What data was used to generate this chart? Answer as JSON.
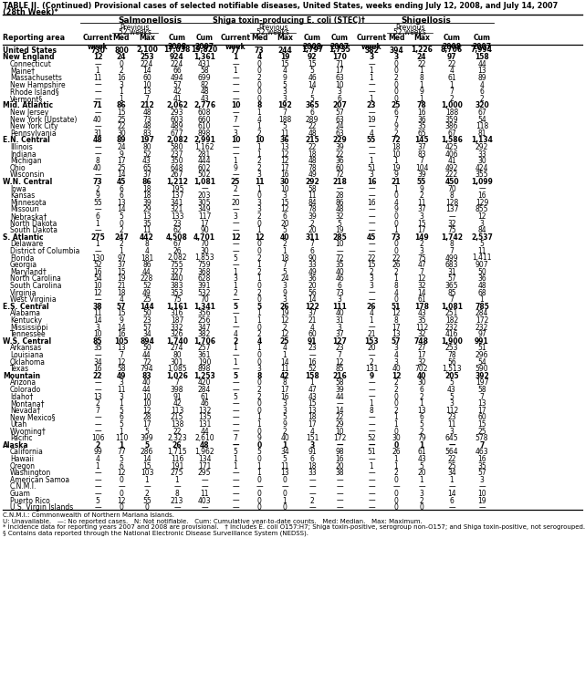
{
  "title_line1": "TABLE II. (Continued) Provisional cases of selected notifiable diseases, United States, weeks ending July 12, 2008, and July 14, 2007",
  "title_line2": "(28th Week)*",
  "footnote_lines": [
    "C.N.M.I.: Commonwealth of Northern Mariana Islands.",
    "U: Unavailable.   —: No reported cases.   N: Not notifiable.   Cum: Cumulative year-to-date counts.   Med: Median.   Max: Maximum.",
    "* Incidence data for reporting years 2007 and 2008 are provisional.   † Includes E. coli O157:H7; Shiga toxin-positive, serogroup non-O157; and Shiga toxin-positive, not serogrouped.",
    "§ Contains data reported through the National Electronic Disease Surveillance System (NEDSS)."
  ],
  "rows": [
    [
      "United States",
      "730",
      "800",
      "2,100",
      "17,038",
      "19,820",
      "77",
      "73",
      "244",
      "1,797",
      "1,735",
      "382",
      "394",
      "1,226",
      "8,706",
      "7,994"
    ],
    [
      "New England",
      "12",
      "24",
      "253",
      "924",
      "1,361",
      "1",
      "4",
      "19",
      "92",
      "170",
      "3",
      "3",
      "24",
      "97",
      "158"
    ],
    [
      "Connecticut",
      "—",
      "0",
      "224",
      "224",
      "431",
      "—",
      "0",
      "15",
      "15",
      "71",
      "—",
      "0",
      "22",
      "22",
      "44"
    ],
    [
      "Maine†",
      "1",
      "2",
      "14",
      "66",
      "58",
      "1",
      "0",
      "4",
      "5",
      "17",
      "1",
      "0",
      "1",
      "4",
      "13"
    ],
    [
      "Massachusetts",
      "11",
      "16",
      "60",
      "494",
      "699",
      "—",
      "2",
      "9",
      "46",
      "63",
      "1",
      "2",
      "8",
      "61",
      "89"
    ],
    [
      "New Hampshire",
      "—",
      "3",
      "10",
      "57",
      "82",
      "—",
      "0",
      "5",
      "14",
      "10",
      "—",
      "0",
      "1",
      "1",
      "4"
    ],
    [
      "Rhode Island§",
      "—",
      "1",
      "13",
      "42",
      "48",
      "—",
      "0",
      "3",
      "7",
      "3",
      "—",
      "0",
      "9",
      "7",
      "6"
    ],
    [
      "Vermont§",
      "—",
      "1",
      "7",
      "41",
      "43",
      "—",
      "0",
      "3",
      "5",
      "6",
      "1",
      "0",
      "1",
      "2",
      "2"
    ],
    [
      "Mid. Atlantic",
      "71",
      "86",
      "212",
      "2,062",
      "2,776",
      "10",
      "8",
      "192",
      "365",
      "207",
      "23",
      "25",
      "78",
      "1,000",
      "320"
    ],
    [
      "New Jersey",
      "—",
      "15",
      "48",
      "293",
      "608",
      "—",
      "1",
      "7",
      "6",
      "57",
      "—",
      "6",
      "16",
      "188",
      "67"
    ],
    [
      "New York (Upstate)",
      "40",
      "25",
      "73",
      "603",
      "660",
      "7",
      "4",
      "188",
      "289",
      "63",
      "19",
      "7",
      "36",
      "359",
      "54"
    ],
    [
      "New York City",
      "—",
      "22",
      "48",
      "489",
      "610",
      "—",
      "1",
      "5",
      "22",
      "24",
      "—",
      "9",
      "35",
      "386",
      "118"
    ],
    [
      "Pennsylvania",
      "31",
      "30",
      "83",
      "677",
      "898",
      "3",
      "2",
      "11",
      "48",
      "63",
      "4",
      "2",
      "65",
      "67",
      "81"
    ],
    [
      "E.N. Central",
      "48",
      "89",
      "197",
      "2,082",
      "2,991",
      "10",
      "10",
      "36",
      "215",
      "229",
      "55",
      "72",
      "145",
      "1,586",
      "1,134"
    ],
    [
      "Illinois",
      "—",
      "24",
      "80",
      "580",
      "1,162",
      "—",
      "1",
      "13",
      "22",
      "39",
      "—",
      "18",
      "37",
      "425",
      "292"
    ],
    [
      "Indiana",
      "—",
      "9",
      "52",
      "237",
      "281",
      "—",
      "1",
      "12",
      "18",
      "22",
      "—",
      "10",
      "83",
      "406",
      "33"
    ],
    [
      "Michigan",
      "8",
      "17",
      "43",
      "350",
      "444",
      "1",
      "2",
      "12",
      "48",
      "36",
      "1",
      "1",
      "7",
      "41",
      "30"
    ],
    [
      "Ohio",
      "40",
      "25",
      "65",
      "648",
      "602",
      "9",
      "2",
      "17",
      "78",
      "60",
      "51",
      "19",
      "104",
      "492",
      "424"
    ],
    [
      "Wisconsin",
      "—",
      "14",
      "37",
      "267",
      "502",
      "—",
      "3",
      "16",
      "49",
      "72",
      "3",
      "9",
      "39",
      "222",
      "355"
    ],
    [
      "W.N. Central",
      "73",
      "45",
      "86",
      "1,212",
      "1,081",
      "25",
      "11",
      "30",
      "292",
      "218",
      "16",
      "21",
      "55",
      "450",
      "1,099"
    ],
    [
      "Iowa",
      "2",
      "6",
      "18",
      "195",
      "—",
      "2",
      "1",
      "10",
      "58",
      "—",
      "—",
      "1",
      "9",
      "70",
      "—"
    ],
    [
      "Kansas",
      "9",
      "6",
      "18",
      "137",
      "203",
      "—",
      "0",
      "3",
      "11",
      "28",
      "—",
      "0",
      "2",
      "8",
      "16"
    ],
    [
      "Minnesota",
      "55",
      "13",
      "39",
      "341",
      "305",
      "20",
      "3",
      "15",
      "84",
      "86",
      "16",
      "4",
      "11",
      "128",
      "129"
    ],
    [
      "Missouri",
      "—",
      "14",
      "29",
      "321",
      "349",
      "—",
      "3",
      "12",
      "78",
      "48",
      "—",
      "9",
      "37",
      "137",
      "855"
    ],
    [
      "Nebraska†",
      "6",
      "5",
      "13",
      "133",
      "117",
      "3",
      "2",
      "6",
      "39",
      "32",
      "—",
      "0",
      "3",
      "—",
      "12"
    ],
    [
      "North Dakota",
      "1",
      "0",
      "35",
      "23",
      "17",
      "—",
      "0",
      "20",
      "2",
      "5",
      "—",
      "0",
      "15",
      "32",
      "3"
    ],
    [
      "South Dakota",
      "—",
      "2",
      "11",
      "62",
      "90",
      "—",
      "1",
      "5",
      "20",
      "19",
      "—",
      "1",
      "17",
      "75",
      "84"
    ],
    [
      "S. Atlantic",
      "275",
      "247",
      "442",
      "4,508",
      "4,701",
      "12",
      "12",
      "40",
      "311",
      "285",
      "45",
      "73",
      "149",
      "1,742",
      "2,537"
    ],
    [
      "Delaware",
      "1",
      "2",
      "8",
      "67",
      "70",
      "—",
      "0",
      "2",
      "7",
      "10",
      "—",
      "0",
      "2",
      "8",
      "5"
    ],
    [
      "District of Columbia",
      "—",
      "1",
      "4",
      "26",
      "30",
      "—",
      "0",
      "1",
      "6",
      "—",
      "—",
      "0",
      "3",
      "7",
      "11"
    ],
    [
      "Florida",
      "130",
      "97",
      "181",
      "2,082",
      "1,853",
      "5",
      "2",
      "18",
      "90",
      "72",
      "22",
      "22",
      "75",
      "499",
      "1,411"
    ],
    [
      "Georgia",
      "52",
      "37",
      "86",
      "755",
      "759",
      "—",
      "1",
      "7",
      "33",
      "35",
      "15",
      "26",
      "47",
      "683",
      "907"
    ],
    [
      "Maryland†",
      "16",
      "15",
      "44",
      "327",
      "368",
      "1",
      "2",
      "5",
      "49",
      "40",
      "2",
      "2",
      "7",
      "31",
      "50"
    ],
    [
      "North Carolina",
      "54",
      "19",
      "228",
      "440",
      "628",
      "3",
      "1",
      "24",
      "36",
      "46",
      "3",
      "1",
      "12",
      "57",
      "36"
    ],
    [
      "South Carolina",
      "10",
      "21",
      "52",
      "383",
      "391",
      "1",
      "0",
      "3",
      "20",
      "6",
      "3",
      "8",
      "32",
      "365",
      "48"
    ],
    [
      "Virginia",
      "12",
      "18",
      "49",
      "353",
      "532",
      "2",
      "2",
      "9",
      "56",
      "73",
      "—",
      "4",
      "14",
      "85",
      "68"
    ],
    [
      "West Virginia",
      "—",
      "4",
      "25",
      "75",
      "70",
      "—",
      "0",
      "3",
      "14",
      "3",
      "—",
      "0",
      "61",
      "7",
      "1"
    ],
    [
      "E.S. Central",
      "38",
      "57",
      "144",
      "1,161",
      "1,341",
      "5",
      "5",
      "26",
      "122",
      "111",
      "26",
      "51",
      "178",
      "1,081",
      "785"
    ],
    [
      "Alabama",
      "11",
      "15",
      "50",
      "316",
      "356",
      "—",
      "1",
      "19",
      "37",
      "40",
      "4",
      "12",
      "43",
      "251",
      "284"
    ],
    [
      "Kentucky",
      "14",
      "9",
      "23",
      "187",
      "256",
      "1",
      "1",
      "12",
      "21",
      "31",
      "1",
      "8",
      "35",
      "182",
      "172"
    ],
    [
      "Mississippi",
      "3",
      "14",
      "57",
      "332",
      "347",
      "—",
      "0",
      "2",
      "4",
      "3",
      "—",
      "17",
      "112",
      "232",
      "232"
    ],
    [
      "Tennessee",
      "10",
      "16",
      "34",
      "326",
      "382",
      "4",
      "2",
      "12",
      "60",
      "37",
      "21",
      "13",
      "32",
      "416",
      "97"
    ],
    [
      "W.S. Central",
      "85",
      "105",
      "894",
      "1,740",
      "1,706",
      "2",
      "4",
      "25",
      "91",
      "127",
      "153",
      "57",
      "748",
      "1,900",
      "991"
    ],
    [
      "Arkansas",
      "35",
      "13",
      "50",
      "274",
      "257",
      "1",
      "1",
      "4",
      "23",
      "23",
      "20",
      "3",
      "27",
      "253",
      "51"
    ],
    [
      "Louisiana",
      "—",
      "7",
      "44",
      "80",
      "361",
      "—",
      "0",
      "1",
      "—",
      "7",
      "—",
      "4",
      "17",
      "78",
      "296"
    ],
    [
      "Oklahoma",
      "34",
      "12",
      "72",
      "301",
      "190",
      "1",
      "0",
      "14",
      "16",
      "12",
      "2",
      "3",
      "32",
      "56",
      "54"
    ],
    [
      "Texas",
      "16",
      "58",
      "794",
      "1,085",
      "898",
      "—",
      "3",
      "11",
      "52",
      "85",
      "131",
      "40",
      "702",
      "1,513",
      "590"
    ],
    [
      "Mountain",
      "22",
      "49",
      "83",
      "1,026",
      "1,253",
      "5",
      "8",
      "42",
      "158",
      "216",
      "9",
      "12",
      "40",
      "205",
      "392"
    ],
    [
      "Arizona",
      "—",
      "3",
      "40",
      "7",
      "420",
      "—",
      "0",
      "8",
      "1",
      "58",
      "—",
      "2",
      "30",
      "5",
      "197"
    ],
    [
      "Colorado",
      "—",
      "11",
      "44",
      "398",
      "284",
      "—",
      "2",
      "17",
      "47",
      "39",
      "—",
      "2",
      "6",
      "43",
      "58"
    ],
    [
      "Idaho†",
      "13",
      "3",
      "10",
      "91",
      "61",
      "5",
      "2",
      "16",
      "43",
      "44",
      "—",
      "0",
      "2",
      "5",
      "7"
    ],
    [
      "Montana†",
      "2",
      "1",
      "10",
      "42",
      "46",
      "—",
      "0",
      "3",
      "15",
      "—",
      "1",
      "0",
      "1",
      "3",
      "13"
    ],
    [
      "Nevada†",
      "7",
      "5",
      "12",
      "113",
      "132",
      "—",
      "0",
      "3",
      "13",
      "14",
      "8",
      "2",
      "13",
      "112",
      "17"
    ],
    [
      "New Mexico§",
      "—",
      "6",
      "28",
      "215",
      "135",
      "—",
      "1",
      "5",
      "18",
      "22",
      "—",
      "1",
      "6",
      "23",
      "60"
    ],
    [
      "Utah",
      "—",
      "5",
      "17",
      "138",
      "131",
      "—",
      "1",
      "9",
      "17",
      "29",
      "—",
      "1",
      "5",
      "11",
      "15"
    ],
    [
      "Wyoming†",
      "—",
      "1",
      "5",
      "22",
      "44",
      "—",
      "0",
      "2",
      "4",
      "10",
      "—",
      "0",
      "2",
      "3",
      "25"
    ],
    [
      "Pacific",
      "106",
      "110",
      "399",
      "2,323",
      "2,610",
      "7",
      "9",
      "40",
      "151",
      "172",
      "52",
      "30",
      "79",
      "645",
      "578"
    ],
    [
      "Alaska",
      "2",
      "1",
      "5",
      "26",
      "48",
      "—",
      "0",
      "1",
      "3",
      "—",
      "—",
      "0",
      "1",
      "—",
      "7"
    ],
    [
      "California",
      "99",
      "77",
      "286",
      "1,715",
      "1,962",
      "5",
      "5",
      "34",
      "91",
      "98",
      "51",
      "26",
      "61",
      "564",
      "463"
    ],
    [
      "Hawaii",
      "4",
      "5",
      "14",
      "116",
      "134",
      "1",
      "0",
      "5",
      "6",
      "16",
      "—",
      "1",
      "43",
      "22",
      "16"
    ],
    [
      "Oregon",
      "1",
      "6",
      "15",
      "191",
      "171",
      "1",
      "1",
      "11",
      "18",
      "20",
      "1",
      "1",
      "5",
      "25",
      "35"
    ],
    [
      "Washington",
      "—",
      "12",
      "103",
      "275",
      "295",
      "—",
      "1",
      "13",
      "33",
      "38",
      "—",
      "2",
      "20",
      "34",
      "57"
    ],
    [
      "American Samoa",
      "—",
      "0",
      "1",
      "1",
      "—",
      "—",
      "0",
      "0",
      "—",
      "—",
      "—",
      "0",
      "1",
      "1",
      "3"
    ],
    [
      "C.N.M.I.",
      "—",
      "—",
      "—",
      "—",
      "—",
      "—",
      "—",
      "—",
      "—",
      "—",
      "—",
      "—",
      "—",
      "—",
      "—"
    ],
    [
      "Guam",
      "—",
      "0",
      "2",
      "8",
      "11",
      "—",
      "0",
      "0",
      "—",
      "—",
      "—",
      "0",
      "3",
      "14",
      "10"
    ],
    [
      "Puerto Rico",
      "5",
      "12",
      "55",
      "213",
      "403",
      "—",
      "0",
      "1",
      "2",
      "—",
      "—",
      "0",
      "2",
      "6",
      "19"
    ],
    [
      "U.S. Virgin Islands",
      "—",
      "0",
      "0",
      "—",
      "—",
      "—",
      "0",
      "0",
      "—",
      "—",
      "—",
      "0",
      "0",
      "—",
      "—"
    ]
  ],
  "bold_rows": [
    0,
    1,
    8,
    13,
    19,
    27,
    37,
    42,
    47,
    57
  ]
}
